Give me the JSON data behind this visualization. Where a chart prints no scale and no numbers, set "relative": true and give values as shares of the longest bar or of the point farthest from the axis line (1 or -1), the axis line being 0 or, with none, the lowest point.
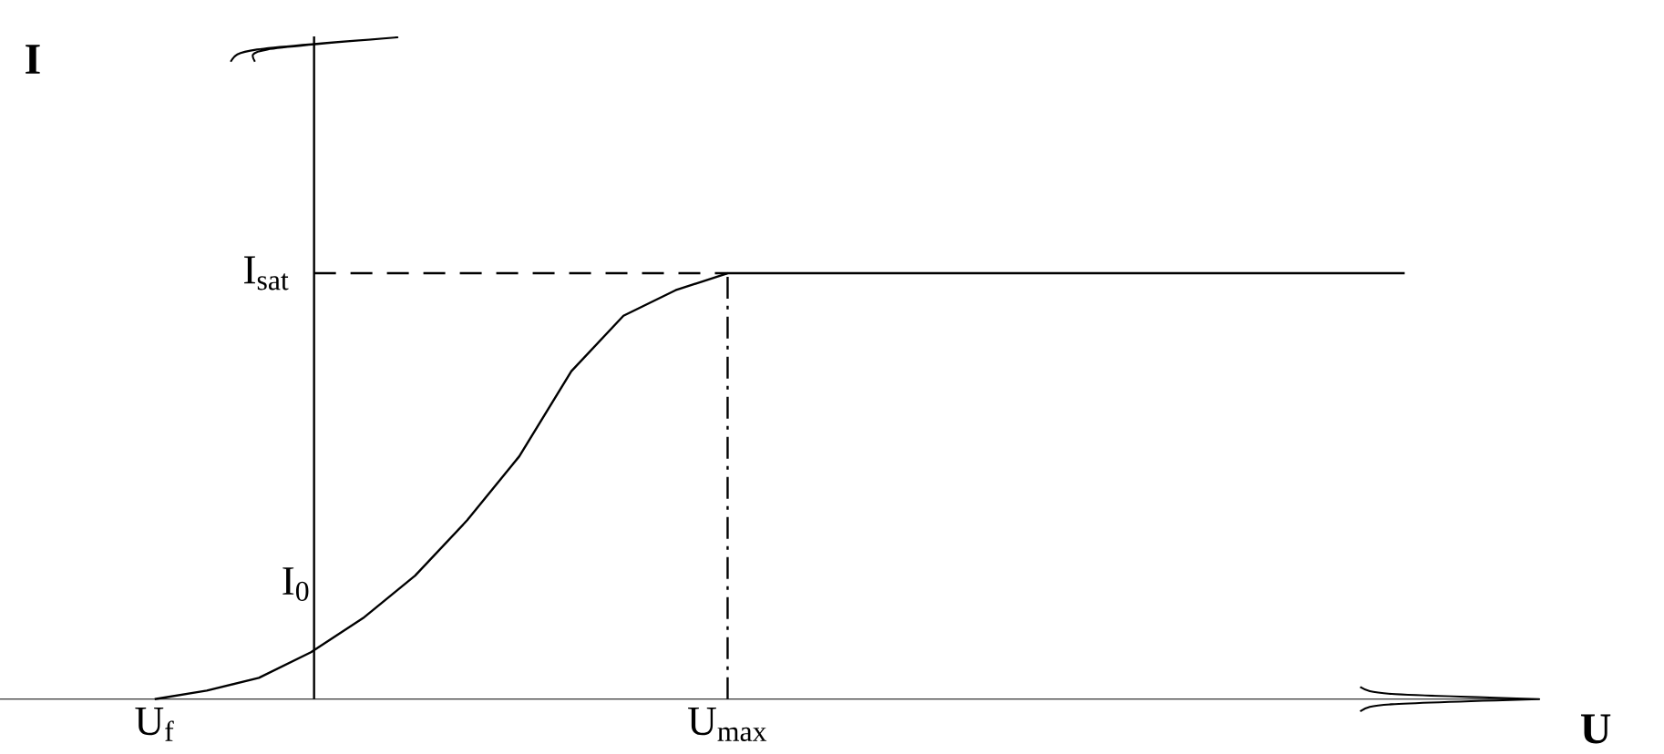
{
  "chart_data": {
    "type": "line",
    "relative": true,
    "xlabel": "U",
    "categories": [
      "U$_{f}$",
      null,
      null,
      null,
      null,
      null,
      null,
      null,
      null,
      null,
      null,
      "U$_{max}$",
      null,
      null,
      null,
      null,
      null,
      null,
      null,
      null,
      null,
      null,
      null,
      null,
      null
    ],
    "values": [
      0,
      0.02,
      0.05,
      0.11,
      0.19,
      0.29,
      0.42,
      0.57,
      0.77,
      0.9,
      0.96,
      1,
      1,
      1,
      1,
      1,
      1,
      1,
      1,
      1,
      1,
      1,
      1,
      1,
      1
    ],
    "color": "#000000",
    "marker": "none",
    "line_style": "solid",
    "ref_lines": [
      {
        "axis": "y",
        "value": 1,
        "label": "I$_{sat}$",
        "line_style": "dashed",
        "color": "#000000"
      }
    ],
    "annotations": [
      "I$_{0}$",
      "I"
    ]
  }
}
